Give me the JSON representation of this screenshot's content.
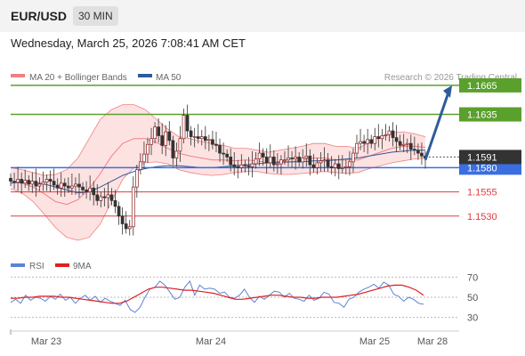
{
  "header": {
    "symbol": "EUR/USD",
    "timeframe": "30 MIN",
    "datetime": "Wednesday, March 25, 2026 7:08:41 AM CET"
  },
  "colors": {
    "resistance": "#5aa02c",
    "support": "#e23c3c",
    "pivot": "#3b6ee0",
    "ma50": "#2e5c9a",
    "bollinger": "#f08080",
    "band_fill": "#fde2e2",
    "arrow": "#2e5c9a",
    "rsi": "#5b84d6",
    "rsi_ma": "#e01f1f"
  },
  "legend": {
    "bollinger": "MA 20 + Bollinger Bands",
    "ma50": "MA 50",
    "credit": "Research © 2026 Trading Central",
    "rsi": "RSI",
    "rsi_ma": "9MA"
  },
  "chart_data": [
    {
      "type": "candlestick",
      "ylim": [
        1.1505,
        1.1675
      ],
      "x_ticks": [
        "Mar 23",
        "Mar 24",
        "Mar 25",
        "Mar 28"
      ],
      "current_price": 1.1591,
      "levels": [
        {
          "value": 1.1665,
          "label": "1.1665",
          "kind": "resistance"
        },
        {
          "value": 1.1635,
          "label": "1.1635",
          "kind": "resistance"
        },
        {
          "value": 1.158,
          "label": "1.1580",
          "kind": "pivot"
        },
        {
          "value": 1.1555,
          "label": "1.1555",
          "kind": "support"
        },
        {
          "value": 1.153,
          "label": "1.1530",
          "kind": "support"
        }
      ],
      "projection": {
        "from": 1.1588,
        "to": 1.1665
      },
      "closes": [
        1.1566,
        1.1565,
        1.1568,
        1.1564,
        1.1567,
        1.1563,
        1.1566,
        1.1561,
        1.1563,
        1.1565,
        1.1568,
        1.1566,
        1.1562,
        1.1559,
        1.1564,
        1.1561,
        1.1559,
        1.1561,
        1.1563,
        1.156,
        1.1557,
        1.1555,
        1.1559,
        1.1552,
        1.1546,
        1.155,
        1.1549,
        1.1552,
        1.1546,
        1.154,
        1.153,
        1.1522,
        1.1517,
        1.1519,
        1.156,
        1.1578,
        1.1586,
        1.1594,
        1.1604,
        1.161,
        1.1622,
        1.1613,
        1.1603,
        1.1617,
        1.1608,
        1.159,
        1.1597,
        1.161,
        1.1634,
        1.1618,
        1.1612,
        1.1612,
        1.161,
        1.1612,
        1.1608,
        1.1609,
        1.1604,
        1.1603,
        1.1595,
        1.1594,
        1.1591,
        1.1583,
        1.1581,
        1.158,
        1.1583,
        1.1582,
        1.1581,
        1.1584,
        1.1589,
        1.1595,
        1.1591,
        1.1585,
        1.1591,
        1.1583,
        1.1584,
        1.1588,
        1.1588,
        1.159,
        1.1589,
        1.1591,
        1.1586,
        1.159,
        1.1592,
        1.1583,
        1.158,
        1.1585,
        1.1587,
        1.1588,
        1.1581,
        1.158,
        1.1584,
        1.1579,
        1.158,
        1.1581,
        1.1586,
        1.1595,
        1.1605,
        1.1607,
        1.1605,
        1.1609,
        1.1605,
        1.1612,
        1.161,
        1.1613,
        1.1614,
        1.1618,
        1.1611,
        1.1607,
        1.1603,
        1.1604,
        1.1605,
        1.1599,
        1.1598,
        1.1595,
        1.1592,
        1.159
      ],
      "bollinger_upper": [
        1.158,
        1.1578,
        1.1575,
        1.1572,
        1.1573,
        1.1578,
        1.159,
        1.161,
        1.163,
        1.164,
        1.1645,
        1.1645,
        1.164,
        1.163,
        1.162,
        1.1612,
        1.161,
        1.1607,
        1.1605,
        1.1603,
        1.16,
        1.16,
        1.1598,
        1.1596,
        1.1598,
        1.16,
        1.1602,
        1.1605,
        1.1605,
        1.1602,
        1.1602,
        1.16,
        1.1606,
        1.1612,
        1.1616,
        1.1617,
        1.1615,
        1.1612
      ],
      "bollinger_lower": [
        1.1558,
        1.1554,
        1.1545,
        1.1532,
        1.1518,
        1.1508,
        1.1505,
        1.1508,
        1.1522,
        1.1545,
        1.1568,
        1.158,
        1.1585,
        1.1586,
        1.1584,
        1.1578,
        1.1575,
        1.1573,
        1.1572,
        1.1573,
        1.1575,
        1.1576,
        1.1576,
        1.1574,
        1.1573,
        1.1573,
        1.1574,
        1.1575,
        1.1576,
        1.1575,
        1.1574,
        1.1575,
        1.1579,
        1.1582,
        1.1585,
        1.1587,
        1.1589,
        1.159
      ],
      "ma20": [
        1.1566,
        1.1564,
        1.156,
        1.1553,
        1.1545,
        1.1542,
        1.1547,
        1.1558,
        1.1574,
        1.1592,
        1.1605,
        1.161,
        1.161,
        1.1606,
        1.16,
        1.1595,
        1.1592,
        1.159,
        1.1588,
        1.1588,
        1.1587,
        1.1588,
        1.1587,
        1.1585,
        1.1585,
        1.1586,
        1.1588,
        1.159,
        1.159,
        1.1588,
        1.1588,
        1.1588,
        1.1592,
        1.1596,
        1.16,
        1.1602,
        1.1602,
        1.1601
      ],
      "ma50": [
        1.1564,
        1.1565,
        1.1565,
        1.1563,
        1.156,
        1.1557,
        1.1554,
        1.1555,
        1.156,
        1.1566,
        1.1572,
        1.1576,
        1.1579,
        1.1581,
        1.1582,
        1.1582,
        1.1581,
        1.158,
        1.158,
        1.1581,
        1.1582,
        1.1583,
        1.1584,
        1.1585,
        1.1586,
        1.1586,
        1.1586,
        1.1587,
        1.1587,
        1.1588,
        1.1589,
        1.159,
        1.1592,
        1.1594,
        1.1596,
        1.1597,
        1.1598,
        1.1598
      ]
    },
    {
      "type": "line",
      "title": "RSI",
      "ylim": [
        20,
        80
      ],
      "y_ticks": [
        70,
        50,
        30
      ],
      "rsi": [
        45,
        48,
        44,
        52,
        47,
        50,
        49,
        46,
        51,
        48,
        53,
        47,
        50,
        44,
        49,
        52,
        47,
        51,
        45,
        49,
        46,
        44,
        42,
        47,
        38,
        35,
        40,
        50,
        58,
        60,
        66,
        62,
        55,
        48,
        50,
        60,
        66,
        52,
        62,
        58,
        59,
        58,
        54,
        55,
        50,
        49,
        52,
        58,
        50,
        45,
        51,
        48,
        52,
        56,
        55,
        50,
        54,
        49,
        48,
        46,
        52,
        47,
        49,
        55,
        53,
        45,
        44,
        40,
        48,
        50,
        55,
        58,
        60,
        63,
        59,
        65,
        62,
        53,
        51,
        46,
        50,
        48,
        44,
        43
      ],
      "rsi_ma": [
        49,
        49,
        50,
        50,
        51,
        51,
        51,
        50,
        50,
        49,
        48,
        47,
        46,
        45,
        44,
        44,
        46,
        50,
        54,
        58,
        60,
        60,
        59,
        58,
        57,
        57,
        56,
        55,
        54,
        52,
        50,
        48,
        48,
        49,
        50,
        51,
        52,
        52,
        51,
        50,
        50,
        49,
        49,
        50,
        50,
        50,
        51,
        52,
        53,
        55,
        57,
        59,
        61,
        62,
        62,
        60,
        57,
        52
      ]
    }
  ]
}
